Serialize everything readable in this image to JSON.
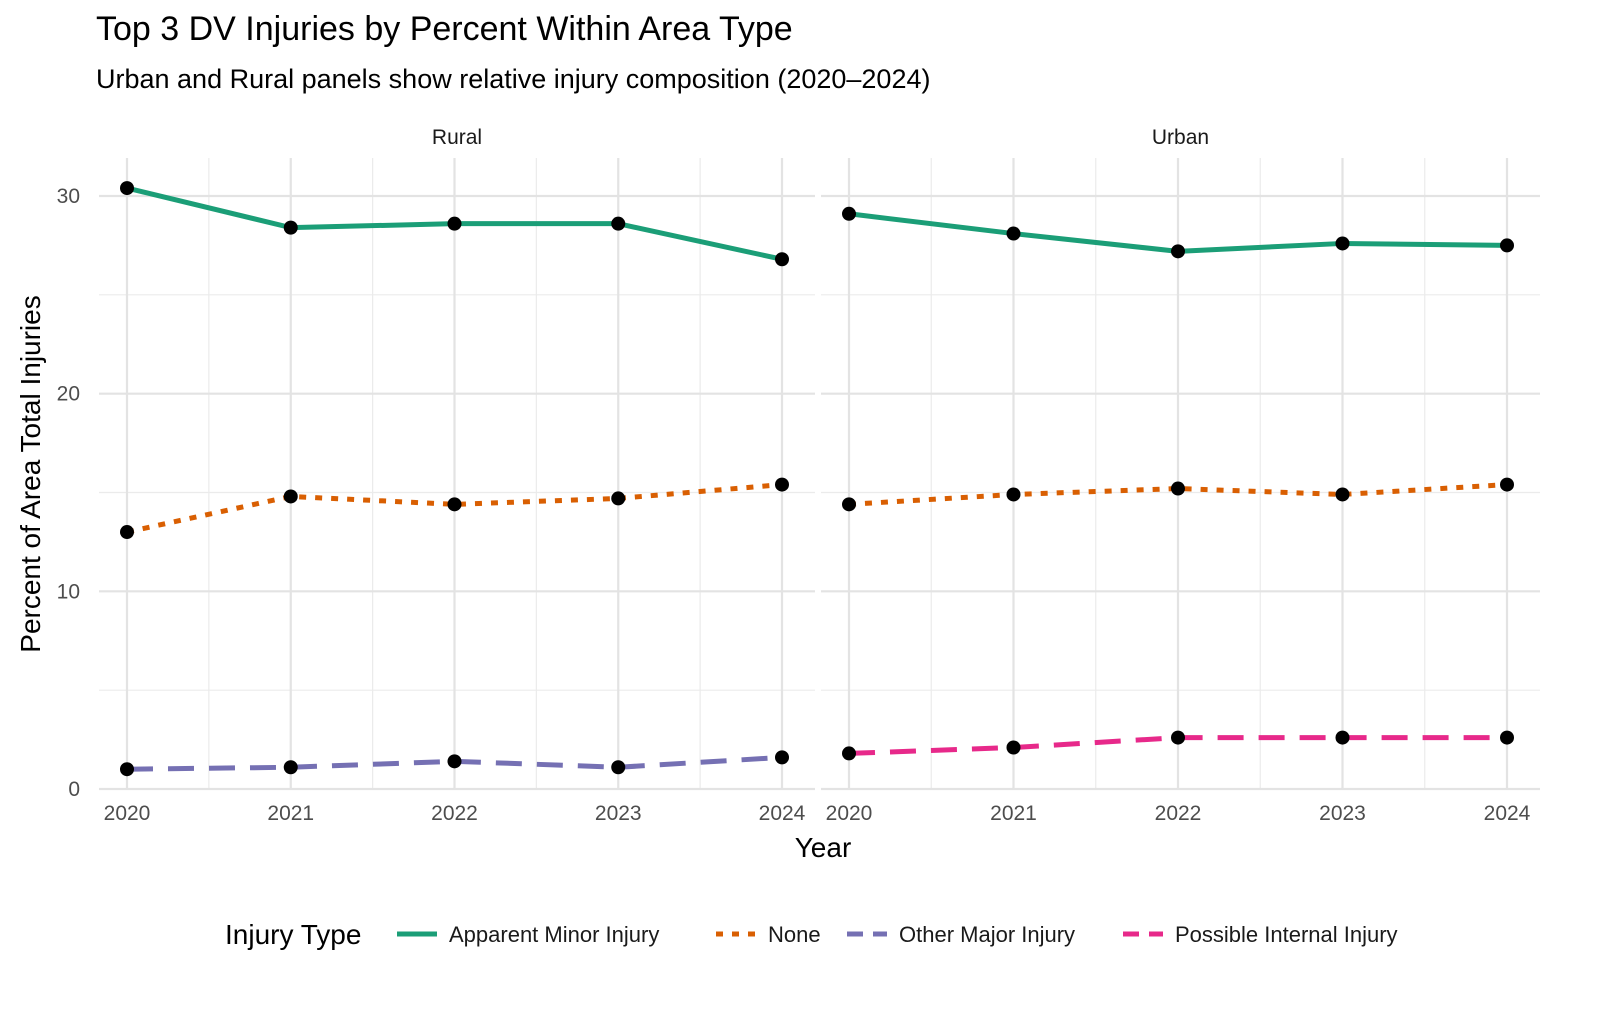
{
  "chart_data": {
    "type": "line",
    "title": "Top 3 DV Injuries by Percent Within Area Type",
    "subtitle": "Urban and Rural panels show relative injury composition (2020–2024)",
    "xlabel": "Year",
    "ylabel": "Percent of Area Total Injuries",
    "x": [
      "2020",
      "2021",
      "2022",
      "2023",
      "2024"
    ],
    "ylim": [
      0,
      32
    ],
    "yticks": [
      "0",
      "10",
      "20",
      "30"
    ],
    "grid": true,
    "legend": {
      "title": "Injury Type",
      "position": "bottom",
      "items": [
        {
          "label": "Apparent Minor Injury",
          "color": "#1b9e77",
          "dash": "solid"
        },
        {
          "label": "None",
          "color": "#d95f02",
          "dash": "dotted"
        },
        {
          "label": "Other Major Injury",
          "color": "#7570b3",
          "dash": "dashed"
        },
        {
          "label": "Possible Internal Injury",
          "color": "#e7298a",
          "dash": "dashed"
        }
      ]
    },
    "panels": [
      {
        "name": "Rural",
        "series": [
          {
            "name": "Apparent Minor Injury",
            "values": [
              30.4,
              28.4,
              28.6,
              28.6,
              26.8
            ]
          },
          {
            "name": "None",
            "values": [
              13.0,
              14.8,
              14.4,
              14.7,
              15.4
            ]
          },
          {
            "name": "Other Major Injury",
            "values": [
              1.0,
              1.1,
              1.4,
              1.1,
              1.6
            ]
          }
        ]
      },
      {
        "name": "Urban",
        "series": [
          {
            "name": "Apparent Minor Injury",
            "values": [
              29.1,
              28.1,
              27.2,
              27.6,
              27.5
            ]
          },
          {
            "name": "None",
            "values": [
              14.4,
              14.9,
              15.2,
              14.9,
              15.4
            ]
          },
          {
            "name": "Possible Internal Injury",
            "values": [
              1.8,
              2.1,
              2.6,
              2.6,
              2.6
            ]
          }
        ]
      }
    ]
  }
}
